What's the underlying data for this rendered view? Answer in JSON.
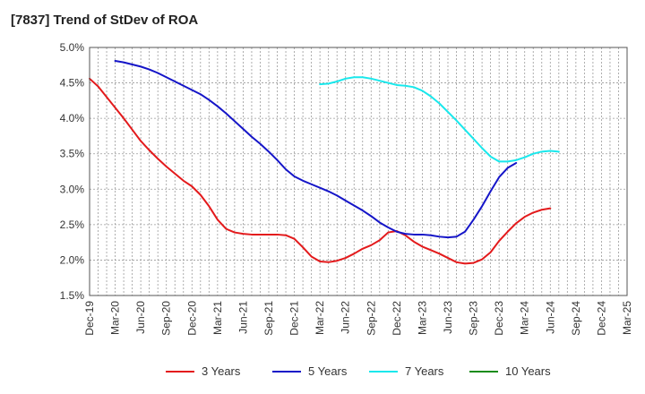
{
  "chart_data": {
    "type": "line",
    "title": "[7837]  Trend of StDev of ROA",
    "xlabel": "",
    "ylabel": "",
    "y_tick_labels": [
      "1.5%",
      "2.0%",
      "2.5%",
      "3.0%",
      "3.5%",
      "4.0%",
      "4.5%",
      "5.0%"
    ],
    "ylim": [
      1.5,
      5.0
    ],
    "x_tick_labels": [
      "Dec-19",
      "Mar-20",
      "Jun-20",
      "Sep-20",
      "Dec-20",
      "Mar-21",
      "Jun-21",
      "Sep-21",
      "Dec-21",
      "Mar-22",
      "Jun-22",
      "Sep-22",
      "Dec-22",
      "Mar-23",
      "Jun-23",
      "Sep-23",
      "Dec-23",
      "Mar-24",
      "Jun-24",
      "Sep-24",
      "Dec-24",
      "Mar-25"
    ],
    "grid": true,
    "legend_position": "bottom",
    "series": [
      {
        "name": "3 Years",
        "color": "#e31a1c",
        "start_index": 0,
        "values": [
          4.56,
          4.45,
          4.3,
          4.15,
          4.0,
          3.84,
          3.68,
          3.55,
          3.43,
          3.32,
          3.22,
          3.12,
          3.04,
          2.92,
          2.76,
          2.57,
          2.44,
          2.39,
          2.37,
          2.36,
          2.36,
          2.36,
          2.36,
          2.35,
          2.3,
          2.18,
          2.05,
          1.98,
          1.97,
          1.99,
          2.03,
          2.09,
          2.16,
          2.21,
          2.28,
          2.39,
          2.41,
          2.35,
          2.26,
          2.19,
          2.14,
          2.09,
          2.03,
          1.97,
          1.95,
          1.96,
          2.01,
          2.11,
          2.27,
          2.4,
          2.52,
          2.61,
          2.67,
          2.71,
          2.73
        ]
      },
      {
        "name": "5 Years",
        "color": "#1515c8",
        "start_index": 3,
        "values": [
          4.81,
          4.79,
          4.76,
          4.73,
          4.69,
          4.64,
          4.58,
          4.52,
          4.46,
          4.4,
          4.34,
          4.26,
          4.17,
          4.07,
          3.96,
          3.85,
          3.74,
          3.64,
          3.53,
          3.41,
          3.28,
          3.18,
          3.12,
          3.07,
          3.02,
          2.97,
          2.91,
          2.84,
          2.77,
          2.7,
          2.62,
          2.53,
          2.46,
          2.4,
          2.37,
          2.36,
          2.36,
          2.35,
          2.33,
          2.32,
          2.33,
          2.4,
          2.57,
          2.76,
          2.97,
          3.17,
          3.3,
          3.37
        ]
      },
      {
        "name": "7 Years",
        "color": "#19e8ec",
        "start_index": 27,
        "values": [
          4.48,
          4.49,
          4.52,
          4.56,
          4.58,
          4.58,
          4.56,
          4.53,
          4.5,
          4.47,
          4.46,
          4.44,
          4.39,
          4.31,
          4.21,
          4.09,
          3.97,
          3.84,
          3.71,
          3.58,
          3.46,
          3.39,
          3.39,
          3.41,
          3.45,
          3.5,
          3.53,
          3.54,
          3.53
        ]
      },
      {
        "name": "10 Years",
        "color": "#1a8c1a",
        "start_index": 0,
        "values": []
      }
    ]
  }
}
